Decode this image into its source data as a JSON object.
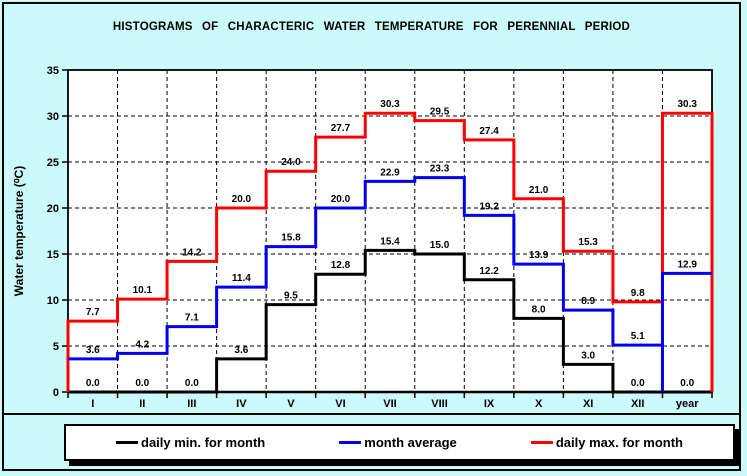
{
  "title": "HISTOGRAMS OF CHARACTERIC WATER TEMPERATURE FOR PERENNIAL PERIOD",
  "chart_data": {
    "type": "line",
    "subtype": "step-histogram",
    "title": "HISTOGRAMS OF CHARACTERIC WATER TEMPERATURE FOR PERENNIAL PERIOD",
    "xlabel": "",
    "ylabel": "Water temperature (⁰C)",
    "ylim": [
      0,
      35
    ],
    "y_ticks": [
      0,
      5,
      10,
      15,
      20,
      25,
      30,
      35
    ],
    "grid": true,
    "legend_position": "bottom",
    "categories": [
      "I",
      "II",
      "III",
      "IV",
      "V",
      "VI",
      "VII",
      "VIII",
      "IX",
      "X",
      "XI",
      "XII",
      "year"
    ],
    "series": [
      {
        "name": "daily min. for month",
        "color": "#000000",
        "values": [
          0.0,
          0.0,
          0.0,
          3.6,
          9.5,
          12.8,
          15.4,
          15.0,
          12.2,
          8.0,
          3.0,
          0.0,
          0.0
        ]
      },
      {
        "name": "month average",
        "color": "#0000EE",
        "values": [
          3.6,
          4.2,
          7.1,
          11.4,
          15.8,
          20.0,
          22.9,
          23.3,
          19.2,
          13.9,
          8.9,
          5.1,
          12.9
        ]
      },
      {
        "name": "daily max. for month",
        "color": "#FF0000",
        "values": [
          7.7,
          10.1,
          14.2,
          20.0,
          24.0,
          27.7,
          30.3,
          29.5,
          27.4,
          21.0,
          15.3,
          9.8,
          30.3
        ]
      }
    ]
  },
  "colors": {
    "background": "#CCFAFA",
    "plot_background": "#FFFFFF",
    "frame": "#000000"
  }
}
